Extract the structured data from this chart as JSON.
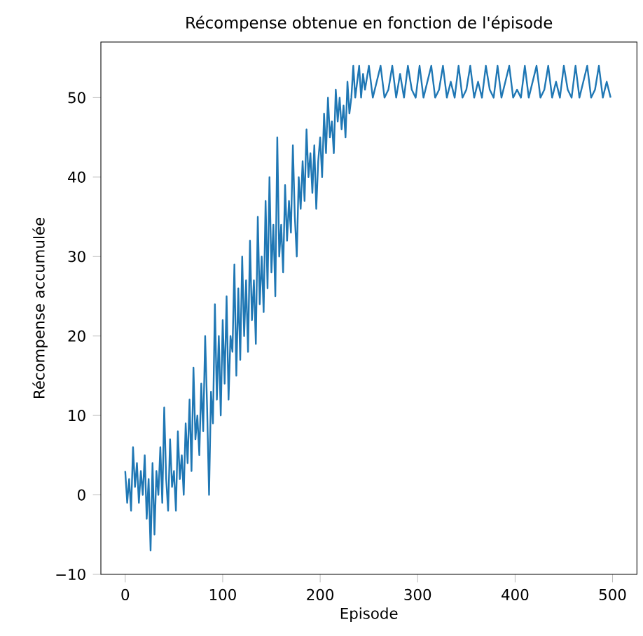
{
  "chart_data": {
    "type": "line",
    "title": "Récompense obtenue en fonction de l'épisode",
    "xlabel": "Episode",
    "ylabel": "Récompense accumulée",
    "x": [
      0,
      2,
      4,
      6,
      8,
      10,
      12,
      14,
      16,
      18,
      20,
      22,
      24,
      26,
      28,
      30,
      32,
      34,
      36,
      38,
      40,
      42,
      44,
      46,
      48,
      50,
      52,
      54,
      56,
      58,
      60,
      62,
      64,
      66,
      68,
      70,
      72,
      74,
      76,
      78,
      80,
      82,
      84,
      86,
      88,
      90,
      92,
      94,
      96,
      98,
      100,
      102,
      104,
      106,
      108,
      110,
      112,
      114,
      116,
      118,
      120,
      122,
      124,
      126,
      128,
      130,
      132,
      134,
      136,
      138,
      140,
      142,
      144,
      146,
      148,
      150,
      152,
      154,
      156,
      158,
      160,
      162,
      164,
      166,
      168,
      170,
      172,
      174,
      176,
      178,
      180,
      182,
      184,
      186,
      188,
      190,
      192,
      194,
      196,
      198,
      200,
      202,
      204,
      206,
      208,
      210,
      212,
      214,
      216,
      218,
      220,
      222,
      224,
      226,
      228,
      230,
      232,
      234,
      236,
      238,
      240,
      242,
      244,
      246,
      250,
      254,
      258,
      262,
      266,
      270,
      274,
      278,
      282,
      286,
      290,
      294,
      298,
      302,
      306,
      310,
      314,
      318,
      322,
      326,
      330,
      334,
      338,
      342,
      346,
      350,
      354,
      358,
      362,
      366,
      370,
      374,
      378,
      382,
      386,
      390,
      394,
      398,
      402,
      406,
      410,
      414,
      418,
      422,
      426,
      430,
      434,
      438,
      442,
      446,
      450,
      454,
      458,
      462,
      466,
      470,
      474,
      478,
      482,
      486,
      490,
      494,
      498
    ],
    "series": [
      {
        "color": "#1f77b4",
        "values": [
          3,
          -1,
          2,
          -2,
          6,
          1,
          4,
          -1,
          3,
          0,
          5,
          -3,
          2,
          -7,
          4,
          -5,
          3,
          0,
          6,
          -1,
          11,
          2,
          -2,
          7,
          1,
          3,
          -2,
          8,
          2,
          5,
          0,
          9,
          4,
          12,
          3,
          16,
          7,
          10,
          5,
          14,
          8,
          20,
          11,
          0,
          13,
          9,
          24,
          12,
          20,
          10,
          22,
          14,
          25,
          12,
          20,
          18,
          29,
          15,
          26,
          17,
          30,
          20,
          27,
          18,
          32,
          22,
          27,
          19,
          35,
          24,
          30,
          23,
          37,
          26,
          40,
          28,
          34,
          25,
          45,
          30,
          34,
          28,
          39,
          32,
          37,
          33,
          44,
          35,
          30,
          40,
          36,
          42,
          37,
          46,
          40,
          43,
          38,
          44,
          36,
          42,
          45,
          40,
          48,
          43,
          50,
          45,
          47,
          43,
          51,
          47,
          50,
          46,
          49,
          45,
          52,
          48,
          50,
          54,
          50,
          52,
          54,
          50,
          53,
          51,
          54,
          50,
          52,
          54,
          50,
          51,
          54,
          50,
          53,
          50,
          54,
          51,
          50,
          54,
          50,
          52,
          54,
          50,
          51,
          54,
          50,
          52,
          50,
          54,
          50,
          51,
          54,
          50,
          52,
          50,
          54,
          51,
          50,
          54,
          50,
          52,
          54,
          50,
          51,
          50,
          54,
          50,
          52,
          54,
          50,
          51,
          54,
          50,
          52,
          50,
          54,
          51,
          50,
          54,
          50,
          52,
          54,
          50,
          51,
          54,
          50,
          52,
          50
        ]
      }
    ],
    "xlim": [
      -25,
      525
    ],
    "ylim": [
      -10,
      57
    ],
    "xticks": [
      0,
      100,
      200,
      300,
      400,
      500
    ],
    "yticks": [
      {
        "value": -10,
        "label": "−10"
      },
      0,
      10,
      20,
      30,
      40,
      50
    ]
  }
}
